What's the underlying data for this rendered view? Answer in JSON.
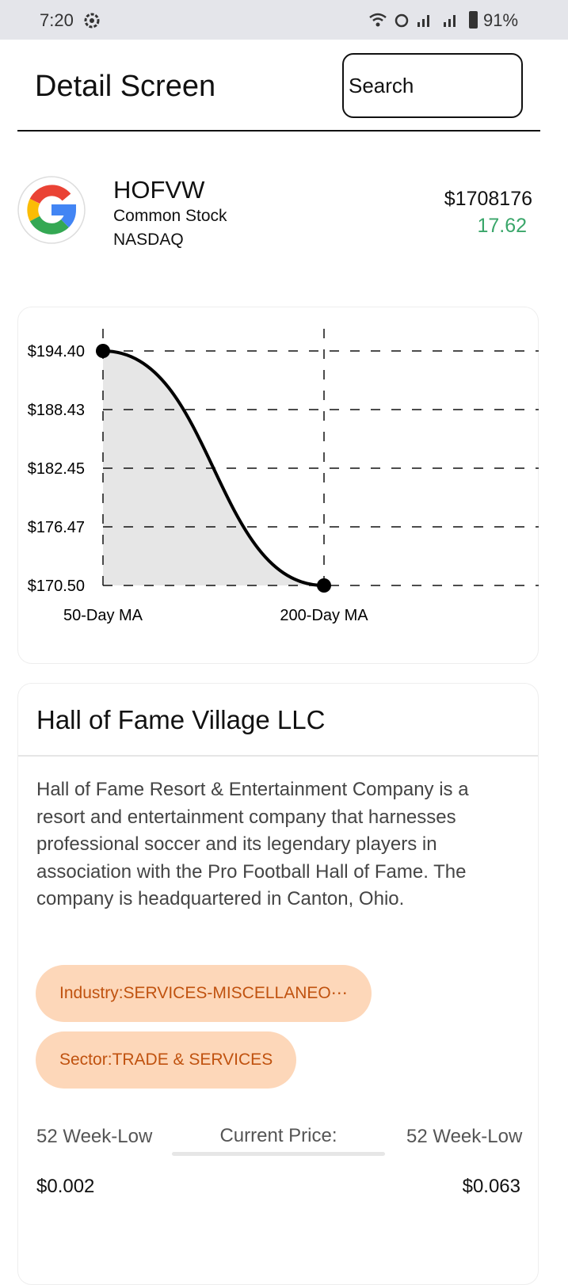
{
  "status_bar": {
    "time": "7:20",
    "battery": "91%"
  },
  "header": {
    "title": "Detail Screen",
    "search_placeholder": "Search"
  },
  "stock": {
    "symbol": "HOFVW",
    "asset_type": "Common Stock",
    "exchange": "NASDAQ",
    "price": "$1708176",
    "change": "17.62"
  },
  "chart_data": {
    "type": "line",
    "categories": [
      "50-Day MA",
      "200-Day MA"
    ],
    "values": [
      194.4,
      170.5
    ],
    "ylim": [
      170.5,
      194.4
    ],
    "yticks": [
      {
        "value": 194.4,
        "label": "$194.40"
      },
      {
        "value": 188.43,
        "label": "$188.43"
      },
      {
        "value": 182.45,
        "label": "$182.45"
      },
      {
        "value": 176.47,
        "label": "$176.47"
      },
      {
        "value": 170.5,
        "label": "$170.50"
      }
    ],
    "color": "#000000",
    "area_color": "#e6e6e6",
    "grid": true
  },
  "company": {
    "name": "Hall of Fame Village LLC",
    "description": "Hall of Fame Resort & Entertainment Company is a resort and entertainment company that harnesses professional soccer and its legendary players in association with the Pro Football Hall of Fame. The company is headquartered in Canton, Ohio.",
    "tags": [
      "Industry:SERVICES-MISCELLANEO⋯",
      "Sector:TRADE & SERVICES"
    ],
    "stats": {
      "low_label": "52 Week-Low",
      "low_value": "$0.002",
      "current_label": "Current Price:",
      "high_label": "52 Week-Low",
      "high_value": "$0.063"
    }
  }
}
